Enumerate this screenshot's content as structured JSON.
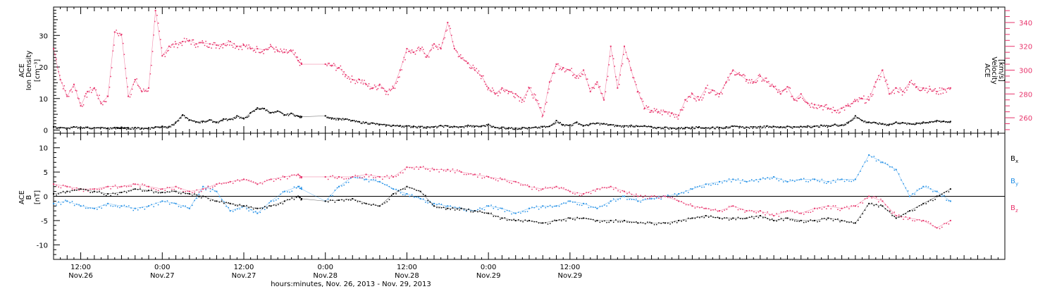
{
  "chart_data": [
    {
      "type": "scatter",
      "panel": "plasma",
      "instrument": "ACE",
      "ylabel_left": [
        "ACE",
        "Ion Density",
        "[cm⁻³]"
      ],
      "ylabel_right": [
        "ACE",
        "Velocity",
        "[km/s]"
      ],
      "ylim_left": [
        -1,
        39
      ],
      "ylim_right": [
        247,
        353
      ],
      "yticks_left": [
        0,
        10,
        20,
        30
      ],
      "yticks_right": [
        260,
        280,
        300,
        320,
        340
      ],
      "colors": {
        "density": "#000000",
        "velocity": "#e8336b"
      },
      "series": [
        {
          "name": "Ion Density",
          "axis": "left",
          "color": "#000000",
          "x": [
            0,
            1,
            2,
            3,
            4,
            5,
            6,
            7,
            8,
            9,
            9.5,
            10,
            10.5,
            11,
            12,
            13,
            14,
            15,
            16,
            17,
            18,
            19,
            20,
            21,
            22,
            23,
            24,
            25,
            26,
            27,
            28,
            29,
            30,
            31,
            32,
            33,
            34,
            35,
            36,
            36.5,
            40,
            41,
            42,
            43,
            44,
            45,
            46,
            47,
            48,
            49,
            50,
            51,
            52,
            53,
            54,
            55,
            56,
            57,
            58,
            59,
            60,
            61,
            62,
            63,
            64,
            65,
            66,
            67,
            68,
            69,
            70,
            71,
            72,
            73,
            74,
            75,
            76,
            77,
            78,
            79,
            80,
            81,
            82,
            83,
            84,
            85,
            86,
            87,
            88,
            89,
            90,
            91,
            92,
            93,
            94,
            95,
            96,
            97,
            98,
            99,
            100,
            101,
            102,
            103,
            104,
            105,
            106,
            107,
            108,
            109,
            110,
            111,
            112,
            113,
            114,
            115,
            116,
            117,
            118,
            119,
            120,
            121,
            122,
            123,
            124,
            125,
            126,
            127,
            128,
            129,
            130,
            131,
            132
          ],
          "y": [
            1.0,
            0.8,
            0.6,
            1.0,
            0.8,
            0.9,
            0.7,
            0.8,
            0.6,
            0.8,
            0.7,
            0.9,
            0.6,
            0.7,
            0.8,
            0.6,
            0.7,
            1.0,
            1.2,
            1.1,
            2.5,
            4.8,
            3.2,
            2.6,
            2.8,
            3.2,
            2.5,
            3.5,
            3.4,
            4.5,
            3.6,
            5.5,
            7.0,
            6.8,
            5.5,
            6.0,
            4.8,
            5.3,
            4.4,
            4.2,
            4.5,
            3.8,
            3.6,
            3.5,
            3.0,
            2.6,
            2.4,
            2.2,
            1.8,
            1.6,
            1.5,
            1.4,
            1.3,
            1.2,
            1.1,
            1.0,
            1.0,
            1.4,
            1.3,
            1.1,
            1.0,
            1.5,
            1.2,
            1.3,
            1.8,
            0.8,
            0.9,
            0.7,
            0.6,
            0.8,
            0.7,
            0.9,
            1.1,
            1.2,
            3.0,
            1.7,
            1.6,
            2.5,
            1.4,
            2.0,
            2.2,
            2.0,
            1.7,
            1.4,
            1.3,
            1.5,
            1.2,
            1.3,
            1.0,
            0.8,
            0.9,
            0.6,
            0.7,
            0.8,
            0.9,
            1.0,
            0.7,
            0.9,
            0.8,
            1.0,
            1.2,
            1.1,
            0.9,
            1.0,
            1.1,
            1.3,
            1.1,
            1.0,
            1.2,
            1.0,
            1.1,
            1.3,
            1.2,
            1.5,
            1.3,
            1.8,
            1.6,
            2.5,
            4.5,
            3.0,
            2.5,
            2.3,
            2.0,
            1.8,
            2.5,
            2.3,
            2.0,
            2.2,
            2.5,
            2.5,
            3.0,
            2.8,
            2.7
          ]
        },
        {
          "name": "Velocity",
          "axis": "right",
          "color": "#e8336b",
          "x": [
            0,
            1,
            2,
            3,
            4,
            5,
            6,
            7,
            8,
            9,
            10,
            11,
            12,
            13,
            14,
            15,
            16,
            17,
            18,
            19,
            20,
            21,
            22,
            23,
            24,
            25,
            26,
            27,
            28,
            29,
            30,
            31,
            32,
            33,
            34,
            35,
            36,
            36.5,
            40,
            41,
            42,
            43,
            44,
            45,
            46,
            47,
            48,
            49,
            50,
            51,
            52,
            53,
            54,
            55,
            56,
            57,
            58,
            59,
            60,
            61,
            62,
            63,
            64,
            65,
            66,
            67,
            68,
            69,
            70,
            71,
            72,
            73,
            74,
            75,
            76,
            77,
            78,
            79,
            80,
            81,
            82,
            83,
            84,
            85,
            86,
            87,
            88,
            89,
            90,
            91,
            92,
            93,
            94,
            95,
            96,
            97,
            98,
            99,
            100,
            101,
            102,
            103,
            104,
            105,
            106,
            107,
            108,
            109,
            110,
            111,
            112,
            113,
            114,
            115,
            116,
            117,
            118,
            119,
            120,
            121,
            122,
            123,
            124,
            125,
            126,
            127,
            128,
            129,
            130,
            131,
            132
          ],
          "y": [
            318,
            292,
            278,
            288,
            270,
            282,
            285,
            272,
            278,
            332,
            330,
            278,
            292,
            282,
            285,
            350,
            312,
            320,
            322,
            324,
            325,
            322,
            323,
            322,
            321,
            322,
            324,
            320,
            321,
            318,
            318,
            317,
            320,
            316,
            315,
            316,
            308,
            305,
            305,
            304,
            302,
            296,
            292,
            292,
            288,
            285,
            288,
            282,
            285,
            300,
            318,
            315,
            318,
            312,
            322,
            318,
            340,
            318,
            310,
            306,
            300,
            295,
            285,
            280,
            285,
            282,
            280,
            275,
            285,
            275,
            262,
            290,
            305,
            302,
            300,
            295,
            300,
            282,
            290,
            275,
            320,
            285,
            320,
            300,
            282,
            268,
            266,
            265,
            265,
            264,
            262,
            275,
            280,
            275,
            285,
            283,
            280,
            290,
            300,
            296,
            292,
            290,
            295,
            290,
            286,
            280,
            286,
            275,
            280,
            272,
            271,
            270,
            268,
            266,
            268,
            270,
            274,
            276,
            275,
            290,
            300,
            280,
            285,
            282,
            290,
            286,
            285,
            284,
            282,
            284,
            285
          ]
        }
      ]
    },
    {
      "type": "scatter",
      "panel": "magnetic-field",
      "instrument": "ACE",
      "ylabel": [
        "ACE",
        "B",
        "[nT]"
      ],
      "ylim": [
        -13,
        13
      ],
      "yticks": [
        -10,
        -5,
        0,
        5,
        10
      ],
      "zero_line": true,
      "legend_placement": "right",
      "series": [
        {
          "name": "Bx",
          "label_main": "B",
          "label_sub": "x",
          "color": "#000000",
          "x": [
            0,
            2,
            4,
            6,
            8,
            10,
            12,
            14,
            16,
            18,
            20,
            22,
            24,
            26,
            28,
            30,
            32,
            34,
            36,
            36.5,
            40,
            42,
            44,
            46,
            48,
            50,
            52,
            54,
            56,
            58,
            60,
            62,
            64,
            66,
            68,
            70,
            72,
            74,
            76,
            78,
            80,
            82,
            84,
            86,
            88,
            90,
            92,
            94,
            96,
            98,
            100,
            102,
            104,
            106,
            108,
            110,
            112,
            114,
            116,
            118,
            120,
            122,
            124,
            126,
            128,
            130,
            132
          ],
          "y": [
            0.5,
            1.0,
            1.5,
            1.0,
            0.5,
            0.8,
            1.5,
            1.2,
            0.8,
            1.0,
            0.5,
            0.0,
            -1.0,
            -1.5,
            -2.0,
            -2.5,
            -2.0,
            -1.0,
            0.0,
            -0.5,
            -1.0,
            -0.8,
            -0.5,
            -1.5,
            -2.0,
            0.5,
            2.0,
            1.0,
            -2.0,
            -2.5,
            -2.5,
            -3.0,
            -3.5,
            -4.5,
            -5.0,
            -5.0,
            -5.5,
            -5.0,
            -4.5,
            -4.5,
            -5.0,
            -5.0,
            -5.0,
            -5.5,
            -5.5,
            -5.5,
            -5.0,
            -4.5,
            -4.0,
            -4.5,
            -4.5,
            -4.5,
            -4.0,
            -5.0,
            -4.5,
            -5.0,
            -5.0,
            -4.5,
            -5.0,
            -5.5,
            -1.5,
            -2.0,
            -4.5,
            -3.0,
            -1.5,
            0.0,
            1.5
          ]
        },
        {
          "name": "By",
          "label_main": "B",
          "label_sub": "y",
          "color": "#1f8ee6",
          "x": [
            0,
            2,
            4,
            6,
            8,
            10,
            12,
            14,
            16,
            18,
            20,
            22,
            24,
            26,
            28,
            30,
            32,
            34,
            36,
            36.5,
            40,
            42,
            44,
            46,
            48,
            50,
            52,
            54,
            56,
            58,
            60,
            62,
            64,
            66,
            68,
            70,
            72,
            74,
            76,
            78,
            80,
            82,
            84,
            86,
            88,
            90,
            92,
            94,
            96,
            98,
            100,
            102,
            104,
            106,
            108,
            110,
            112,
            114,
            116,
            118,
            120,
            122,
            124,
            126,
            128,
            130,
            132
          ],
          "y": [
            -1.5,
            -1.0,
            -2.0,
            -2.5,
            -1.5,
            -2.0,
            -2.5,
            -2.0,
            -1.0,
            -1.5,
            -2.5,
            2.0,
            1.0,
            -3.0,
            -2.0,
            -3.5,
            -1.0,
            1.0,
            2.0,
            1.5,
            -1.0,
            2.0,
            4.0,
            3.5,
            3.0,
            1.5,
            0.5,
            -0.5,
            -1.5,
            -2.0,
            -2.5,
            -3.0,
            -2.0,
            -2.5,
            -3.5,
            -2.5,
            -2.0,
            -2.0,
            -1.0,
            -1.5,
            -2.5,
            -1.0,
            0.0,
            -1.0,
            -0.5,
            0.0,
            0.5,
            1.5,
            2.5,
            3.0,
            3.5,
            3.0,
            3.5,
            4.0,
            3.0,
            3.5,
            3.5,
            3.0,
            3.5,
            3.5,
            8.5,
            7.0,
            5.5,
            0.0,
            2.0,
            1.0,
            -1.0
          ]
        },
        {
          "name": "Bz",
          "label_main": "B",
          "label_sub": "z",
          "color": "#e8336b",
          "x": [
            0,
            2,
            4,
            6,
            8,
            10,
            12,
            14,
            16,
            18,
            20,
            22,
            24,
            26,
            28,
            30,
            32,
            34,
            36,
            36.5,
            40,
            42,
            44,
            46,
            48,
            50,
            52,
            54,
            56,
            58,
            60,
            62,
            64,
            66,
            68,
            70,
            72,
            74,
            76,
            78,
            80,
            82,
            84,
            86,
            88,
            90,
            92,
            94,
            96,
            98,
            100,
            102,
            104,
            106,
            108,
            110,
            112,
            114,
            116,
            118,
            120,
            122,
            124,
            126,
            128,
            130,
            132
          ],
          "y": [
            2.5,
            2.0,
            1.5,
            1.5,
            2.0,
            2.0,
            2.5,
            2.0,
            1.5,
            2.0,
            1.0,
            1.5,
            2.5,
            3.0,
            3.5,
            2.5,
            3.5,
            4.0,
            4.5,
            4.0,
            4.0,
            4.0,
            4.0,
            4.5,
            4.0,
            4.0,
            6.0,
            6.0,
            5.5,
            5.5,
            5.0,
            4.5,
            4.0,
            3.5,
            3.0,
            2.0,
            1.5,
            2.0,
            1.0,
            0.5,
            1.5,
            2.0,
            1.0,
            0.0,
            0.0,
            0.0,
            -1.0,
            -2.0,
            -2.5,
            -3.0,
            -2.0,
            -3.0,
            -3.0,
            -4.0,
            -3.0,
            -3.5,
            -2.5,
            -2.0,
            -2.5,
            -2.0,
            0.0,
            -1.0,
            -4.0,
            -4.5,
            -5.0,
            -6.5,
            -5.0
          ]
        }
      ]
    }
  ],
  "time_axis": {
    "xlim": [
      0,
      140
    ],
    "major_ticks": [
      {
        "x": 4,
        "time": "12:00",
        "date": "Nov.26"
      },
      {
        "x": 16,
        "time": "0:00",
        "date": "Nov.27"
      },
      {
        "x": 28,
        "time": "12:00",
        "date": "Nov.27"
      },
      {
        "x": 40,
        "time": "0:00",
        "date": "Nov.28"
      },
      {
        "x": 52,
        "time": "12:00",
        "date": "Nov.28"
      },
      {
        "x": 64,
        "time": "0:00",
        "date": "Nov.29"
      },
      {
        "x": 76,
        "time": "12:00",
        "date": "Nov.29"
      }
    ],
    "xlabel": "hours:minutes, Nov. 26, 2013 - Nov. 29, 2013"
  }
}
